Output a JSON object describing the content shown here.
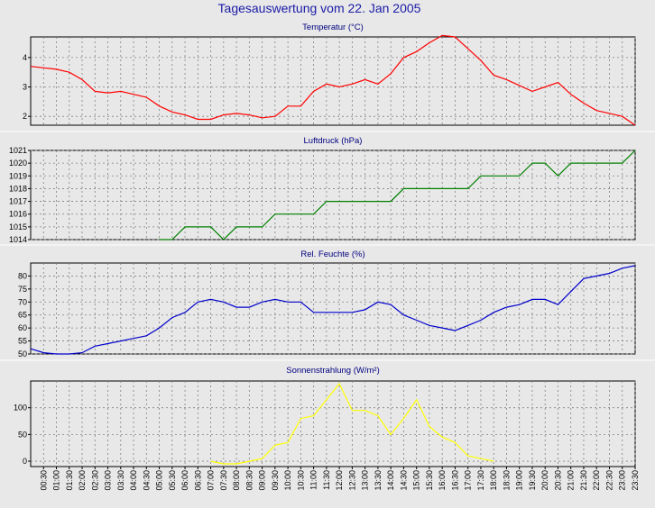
{
  "title": "Tagesauswertung vom 22. Jan 2005",
  "x_ticks": [
    "00:30",
    "01:00",
    "01:30",
    "02:00",
    "02:30",
    "03:00",
    "03:30",
    "04:00",
    "04:30",
    "05:00",
    "05:30",
    "06:00",
    "06:30",
    "07:00",
    "07:30",
    "08:00",
    "08:30",
    "09:00",
    "09:30",
    "10:00",
    "10:30",
    "11:00",
    "11:30",
    "12:00",
    "12:30",
    "13:00",
    "13:30",
    "14:00",
    "14:30",
    "15:00",
    "15:30",
    "16:00",
    "16:30",
    "17:00",
    "17:30",
    "18:00",
    "18:30",
    "19:00",
    "19:30",
    "20:00",
    "20:30",
    "21:00",
    "21:30",
    "22:00",
    "22:30",
    "23:00",
    "23:30"
  ],
  "colors": {
    "background": "#e8e8e8",
    "panel_background": "#e8e8e8",
    "grid": "#808080",
    "axis": "#000000",
    "title": "#1a1aa8",
    "panel_title": "#000080"
  },
  "chart_data": [
    {
      "type": "line",
      "title": "Temperatur (°C)",
      "ylim": [
        1.7,
        4.7
      ],
      "yticks": [
        2,
        3,
        4
      ],
      "grid": true,
      "color": "#ff0000",
      "x": [
        "00:00",
        "00:30",
        "01:00",
        "01:30",
        "02:00",
        "02:30",
        "03:00",
        "03:30",
        "04:00",
        "04:30",
        "05:00",
        "05:30",
        "06:00",
        "06:30",
        "07:00",
        "07:30",
        "08:00",
        "08:30",
        "09:00",
        "09:30",
        "10:00",
        "10:30",
        "11:00",
        "11:30",
        "12:00",
        "12:30",
        "13:00",
        "13:30",
        "14:00",
        "14:30",
        "15:00",
        "15:30",
        "16:00",
        "16:30",
        "17:00",
        "17:30",
        "18:00",
        "18:30",
        "19:00",
        "19:30",
        "20:00",
        "20:30",
        "21:00",
        "21:30",
        "22:00",
        "22:30",
        "23:00",
        "23:30"
      ],
      "values": [
        3.7,
        3.65,
        3.6,
        3.5,
        3.25,
        2.85,
        2.8,
        2.85,
        2.75,
        2.65,
        2.35,
        2.15,
        2.05,
        1.9,
        1.9,
        2.05,
        2.1,
        2.05,
        1.95,
        2.0,
        2.35,
        2.35,
        2.85,
        3.1,
        3.0,
        3.1,
        3.25,
        3.1,
        3.45,
        4.0,
        4.2,
        4.5,
        4.75,
        4.7,
        4.3,
        3.9,
        3.4,
        3.25,
        3.05,
        2.85,
        3.0,
        3.15,
        2.75,
        2.45,
        2.2,
        2.1,
        2.0,
        1.7
      ]
    },
    {
      "type": "line",
      "title": "Luftdruck (hPa)",
      "ylim": [
        1014,
        1021
      ],
      "yticks": [
        1014,
        1015,
        1016,
        1017,
        1018,
        1019,
        1020,
        1021
      ],
      "grid": true,
      "color": "#008000",
      "x": [
        "05:00",
        "05:30",
        "06:00",
        "06:30",
        "07:00",
        "07:30",
        "08:00",
        "08:30",
        "09:00",
        "09:30",
        "10:00",
        "10:30",
        "11:00",
        "11:30",
        "12:00",
        "12:30",
        "13:00",
        "13:30",
        "14:00",
        "14:30",
        "15:00",
        "15:30",
        "16:00",
        "16:30",
        "17:00",
        "17:30",
        "18:00",
        "18:30",
        "19:00",
        "19:30",
        "20:00",
        "20:30",
        "21:00",
        "21:30",
        "22:00",
        "22:30",
        "23:00",
        "23:30"
      ],
      "values": [
        1014,
        1014,
        1015,
        1015,
        1015,
        1014,
        1015,
        1015,
        1015,
        1016,
        1016,
        1016,
        1016,
        1017,
        1017,
        1017,
        1017,
        1017,
        1017,
        1018,
        1018,
        1018,
        1018,
        1018,
        1018,
        1019,
        1019,
        1019,
        1019,
        1020,
        1020,
        1019,
        1020,
        1020,
        1020,
        1020,
        1020,
        1021
      ]
    },
    {
      "type": "line",
      "title": "Rel. Feuchte (%)",
      "ylim": [
        50,
        85
      ],
      "yticks": [
        50,
        55,
        60,
        65,
        70,
        75,
        80
      ],
      "grid": true,
      "color": "#0000cc",
      "x": [
        "00:00",
        "00:30",
        "01:00",
        "01:30",
        "02:00",
        "02:30",
        "03:00",
        "03:30",
        "04:00",
        "04:30",
        "05:00",
        "05:30",
        "06:00",
        "06:30",
        "07:00",
        "07:30",
        "08:00",
        "08:30",
        "09:00",
        "09:30",
        "10:00",
        "10:30",
        "11:00",
        "11:30",
        "12:00",
        "12:30",
        "13:00",
        "13:30",
        "14:00",
        "14:30",
        "15:00",
        "15:30",
        "16:00",
        "16:30",
        "17:00",
        "17:30",
        "18:00",
        "18:30",
        "19:00",
        "19:30",
        "20:00",
        "20:30",
        "21:00",
        "21:30",
        "22:00",
        "22:30",
        "23:00",
        "23:30"
      ],
      "values": [
        52,
        50.5,
        50,
        50,
        50.5,
        53,
        54,
        55,
        56,
        57,
        60,
        64,
        66,
        70,
        71,
        70,
        68,
        68,
        70,
        71,
        70,
        70,
        66,
        66,
        66,
        66,
        67,
        70,
        69,
        65,
        63,
        61,
        60,
        59,
        61,
        63,
        66,
        68,
        69,
        71,
        71,
        69,
        74,
        79,
        80,
        81,
        83,
        84
      ]
    },
    {
      "type": "line",
      "title": "Sonnenstrahlung (W/m²)",
      "ylim": [
        -10,
        150
      ],
      "yticks": [
        0,
        50,
        100
      ],
      "grid": true,
      "color": "#ffff00",
      "x": [
        "07:00",
        "07:30",
        "08:00",
        "08:30",
        "09:00",
        "09:30",
        "10:00",
        "10:30",
        "11:00",
        "11:30",
        "12:00",
        "12:30",
        "13:00",
        "13:30",
        "14:00",
        "14:30",
        "15:00",
        "15:30",
        "16:00",
        "16:30",
        "17:00",
        "17:30",
        "18:00"
      ],
      "values": [
        0,
        -5,
        -5,
        0,
        5,
        30,
        35,
        80,
        85,
        115,
        145,
        95,
        95,
        85,
        50,
        80,
        115,
        65,
        45,
        35,
        10,
        5,
        0
      ]
    }
  ]
}
